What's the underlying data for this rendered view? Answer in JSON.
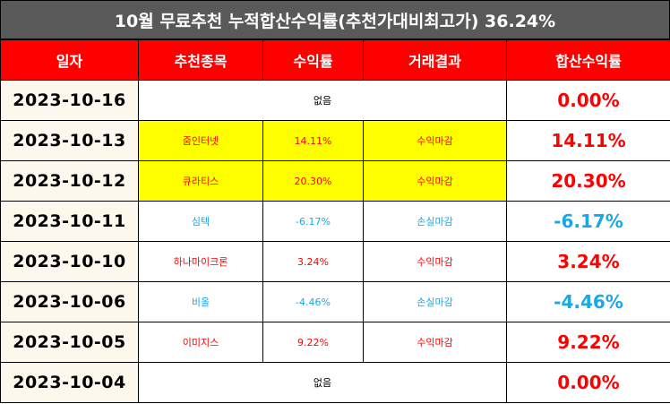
{
  "title": "10월 무료추천 누적합산수익률(추천가대비최고가) 36.24%",
  "headers": [
    "일자",
    "추천종목",
    "수익률",
    "거래결과",
    "합산수익률"
  ],
  "rows": [
    {
      "date": "2023-10-16",
      "none": "없음",
      "total": "0.00%"
    },
    {
      "date": "2023-10-13",
      "stock": "줌인터넷",
      "rate": "14.11%",
      "result": "수익마감",
      "total": "14.11%"
    },
    {
      "date": "2023-10-12",
      "stock": "큐라티스",
      "rate": "20.30%",
      "result": "수익마감",
      "total": "20.30%"
    },
    {
      "date": "2023-10-11",
      "stock": "심텍",
      "rate": "-6.17%",
      "result": "손실마감",
      "total": "-6.17%"
    },
    {
      "date": "2023-10-10",
      "stock": "하나마이크론",
      "rate": "3.24%",
      "result": "수익마감",
      "total": "3.24%"
    },
    {
      "date": "2023-10-06",
      "stock": "비올",
      "rate": "-4.46%",
      "result": "손실마감",
      "total": "-4.46%"
    },
    {
      "date": "2023-10-05",
      "stock": "이미지스",
      "rate": "9.22%",
      "result": "수익마감",
      "total": "9.22%"
    },
    {
      "date": "2023-10-04",
      "none": "없음",
      "total": "0.00%"
    }
  ],
  "colors": {
    "header_bg": "#ff0000",
    "title_bg": "#595959",
    "highlight": "#ffff00",
    "profit": "#ff0000",
    "loss": "#1aa7e8"
  }
}
